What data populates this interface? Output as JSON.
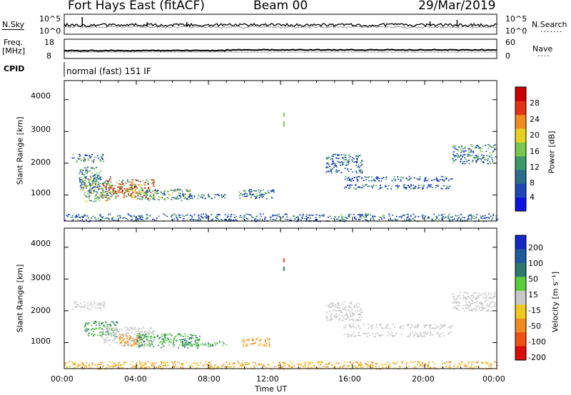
{
  "header": {
    "station": "Fort Hays East (fitACF)",
    "beam": "Beam 00",
    "date": "29/Mar/2019"
  },
  "noise_panel": {
    "left_label": "N.Sky",
    "right_label": "N.Search",
    "left_ticks": [
      "10^5",
      "10^0"
    ],
    "right_ticks": [
      "10^5",
      "10^0"
    ]
  },
  "freq_panel": {
    "left_label_line1": "Freq.",
    "left_label_line2": "[MHz]",
    "right_label": "Nave",
    "left_ticks": [
      "18",
      "8"
    ],
    "right_ticks": [
      "60",
      "0"
    ]
  },
  "cpid_panel": {
    "label": "CPID",
    "text": "normal (fast) 151 IF"
  },
  "power_panel": {
    "ylabel": "Slant Range [km]",
    "colorbar_label": "Power [dB]",
    "yticks": [
      "4000",
      "3000",
      "2000",
      "1000"
    ],
    "colorbar_ticks": [
      "28",
      "24",
      "20",
      "16",
      "12",
      "8",
      "4"
    ]
  },
  "velocity_panel": {
    "ylabel": "Slant Range [km]",
    "colorbar_label": "Velocity [m s⁻¹]",
    "yticks": [
      "4000",
      "3000",
      "2000",
      "1000"
    ],
    "colorbar_ticks": [
      "200",
      "100",
      "50",
      "15",
      "-15",
      "-50",
      "-100",
      "-200"
    ]
  },
  "xaxis": {
    "label": "Time UT",
    "ticks": [
      "00:00",
      "04:00",
      "08:00",
      "12:00",
      "16:00",
      "20:00",
      "00:00"
    ]
  },
  "colors": {
    "power_scale": [
      "#0a14e6",
      "#1e46b4",
      "#2a6e8a",
      "#3c9a6a",
      "#78c850",
      "#e6d21e",
      "#f08c1e",
      "#e63214",
      "#cc0000"
    ],
    "velocity_scale": [
      "#1428c8",
      "#1e5aa0",
      "#2a7a6e",
      "#5acd3c",
      "#c8c8c8",
      "#f0c81e",
      "#f08c1e",
      "#f05014",
      "#dc0a0a"
    ]
  },
  "chart_data": [
    {
      "type": "heatmap",
      "title": "Power",
      "quantity": "Power [dB]",
      "x_range_hours": [
        0,
        24
      ],
      "y_range_km": [
        180,
        4600
      ],
      "color_range": [
        0,
        32
      ],
      "scatter_regions": [
        {
          "t0": 0.4,
          "t1": 2.2,
          "r0": 2050,
          "r1": 2300,
          "value": 10
        },
        {
          "t0": 0.8,
          "t1": 2.0,
          "r0": 1200,
          "r1": 1900,
          "value": 10
        },
        {
          "t0": 1.0,
          "t1": 2.6,
          "r0": 800,
          "r1": 1600,
          "value": 14
        },
        {
          "t0": 2.0,
          "t1": 5.0,
          "r0": 900,
          "r1": 1500,
          "value": 20
        },
        {
          "t0": 2.5,
          "t1": 4.0,
          "r0": 1050,
          "r1": 1350,
          "value": 24
        },
        {
          "t0": 4.0,
          "t1": 7.0,
          "r0": 850,
          "r1": 1200,
          "value": 12
        },
        {
          "t0": 6.5,
          "t1": 9.0,
          "r0": 900,
          "r1": 1050,
          "value": 8
        },
        {
          "t0": 9.6,
          "t1": 11.6,
          "r0": 900,
          "r1": 1200,
          "value": 9
        },
        {
          "t0": 14.5,
          "t1": 16.5,
          "r0": 1700,
          "r1": 2300,
          "value": 8
        },
        {
          "t0": 15.5,
          "t1": 21.5,
          "r0": 1450,
          "r1": 1600,
          "value": 8
        },
        {
          "t0": 15.5,
          "t1": 21.5,
          "r0": 1200,
          "r1": 1350,
          "value": 8
        },
        {
          "t0": 21.5,
          "t1": 23.9,
          "r0": 2000,
          "r1": 2600,
          "value": 10
        },
        {
          "t0": 0.0,
          "t1": 24.0,
          "r0": 180,
          "r1": 420,
          "value": 8
        }
      ]
    },
    {
      "type": "heatmap",
      "title": "Velocity",
      "quantity": "Velocity [m s⁻¹]",
      "x_range_hours": [
        0,
        24
      ],
      "y_range_km": [
        180,
        4600
      ],
      "color_range": [
        -250,
        250
      ],
      "scatter_regions": [
        {
          "t0": 0.4,
          "t1": 2.2,
          "r0": 2050,
          "r1": 2300,
          "value": 0
        },
        {
          "t0": 1.0,
          "t1": 3.0,
          "r0": 1200,
          "r1": 1700,
          "value": 30
        },
        {
          "t0": 2.0,
          "t1": 5.0,
          "r0": 900,
          "r1": 1500,
          "value": 0
        },
        {
          "t0": 3.0,
          "t1": 4.2,
          "r0": 900,
          "r1": 1300,
          "value": -40
        },
        {
          "t0": 4.0,
          "t1": 7.5,
          "r0": 850,
          "r1": 1300,
          "value": 30
        },
        {
          "t0": 6.5,
          "t1": 9.0,
          "r0": 900,
          "r1": 1050,
          "value": 25
        },
        {
          "t0": 9.8,
          "t1": 11.4,
          "r0": 900,
          "r1": 1150,
          "value": -40
        },
        {
          "t0": 14.5,
          "t1": 16.5,
          "r0": 1700,
          "r1": 2300,
          "value": 0
        },
        {
          "t0": 15.5,
          "t1": 21.5,
          "r0": 1450,
          "r1": 1600,
          "value": 0
        },
        {
          "t0": 15.5,
          "t1": 21.5,
          "r0": 1200,
          "r1": 1350,
          "value": 0
        },
        {
          "t0": 21.5,
          "t1": 23.9,
          "r0": 2000,
          "r1": 2600,
          "value": 0
        },
        {
          "t0": 0.0,
          "t1": 24.0,
          "r0": 180,
          "r1": 420,
          "value": -30
        }
      ]
    }
  ]
}
